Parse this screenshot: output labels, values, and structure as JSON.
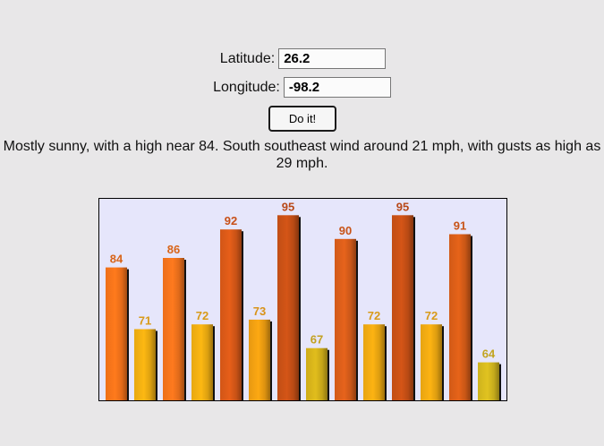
{
  "form": {
    "latitude_label": "Latitude:",
    "latitude_value": "26.2",
    "longitude_label": "Longitude:",
    "longitude_value": "-98.2",
    "submit_label": "Do it!"
  },
  "forecast": {
    "text": "Mostly sunny, with a high near 84. South southeast wind around 21 mph, with gusts as high as 29 mph."
  },
  "colors": {
    "page_background": "#e8e7e8",
    "chart_background": "#e6e6fb"
  },
  "chart_data": {
    "type": "bar",
    "title": "",
    "xlabel": "",
    "ylabel": "",
    "ylim": [
      56,
      100
    ],
    "grid": false,
    "values": [
      84,
      71,
      86,
      72,
      92,
      73,
      95,
      67,
      90,
      72,
      95,
      72,
      91,
      64
    ],
    "value_labels": [
      "84",
      "71",
      "86",
      "72",
      "92",
      "73",
      "95",
      "67",
      "90",
      "72",
      "95",
      "72",
      "91",
      "64"
    ],
    "bar_colors": [
      "#e36a18",
      "#dca010",
      "#e06a1a",
      "#dca010",
      "#c85216",
      "#dc9210",
      "#b84a14",
      "#c4a418",
      "#c85618",
      "#dc9c10",
      "#b84a14",
      "#dc9c10",
      "#c85616",
      "#c4aa1c"
    ],
    "label_colors": [
      "#d86418",
      "#d89a18",
      "#d86418",
      "#d89a18",
      "#c85018",
      "#d89218",
      "#b84818",
      "#c2a020",
      "#c85418",
      "#d89a18",
      "#b84818",
      "#d89a18",
      "#c85418",
      "#c2a420"
    ]
  }
}
